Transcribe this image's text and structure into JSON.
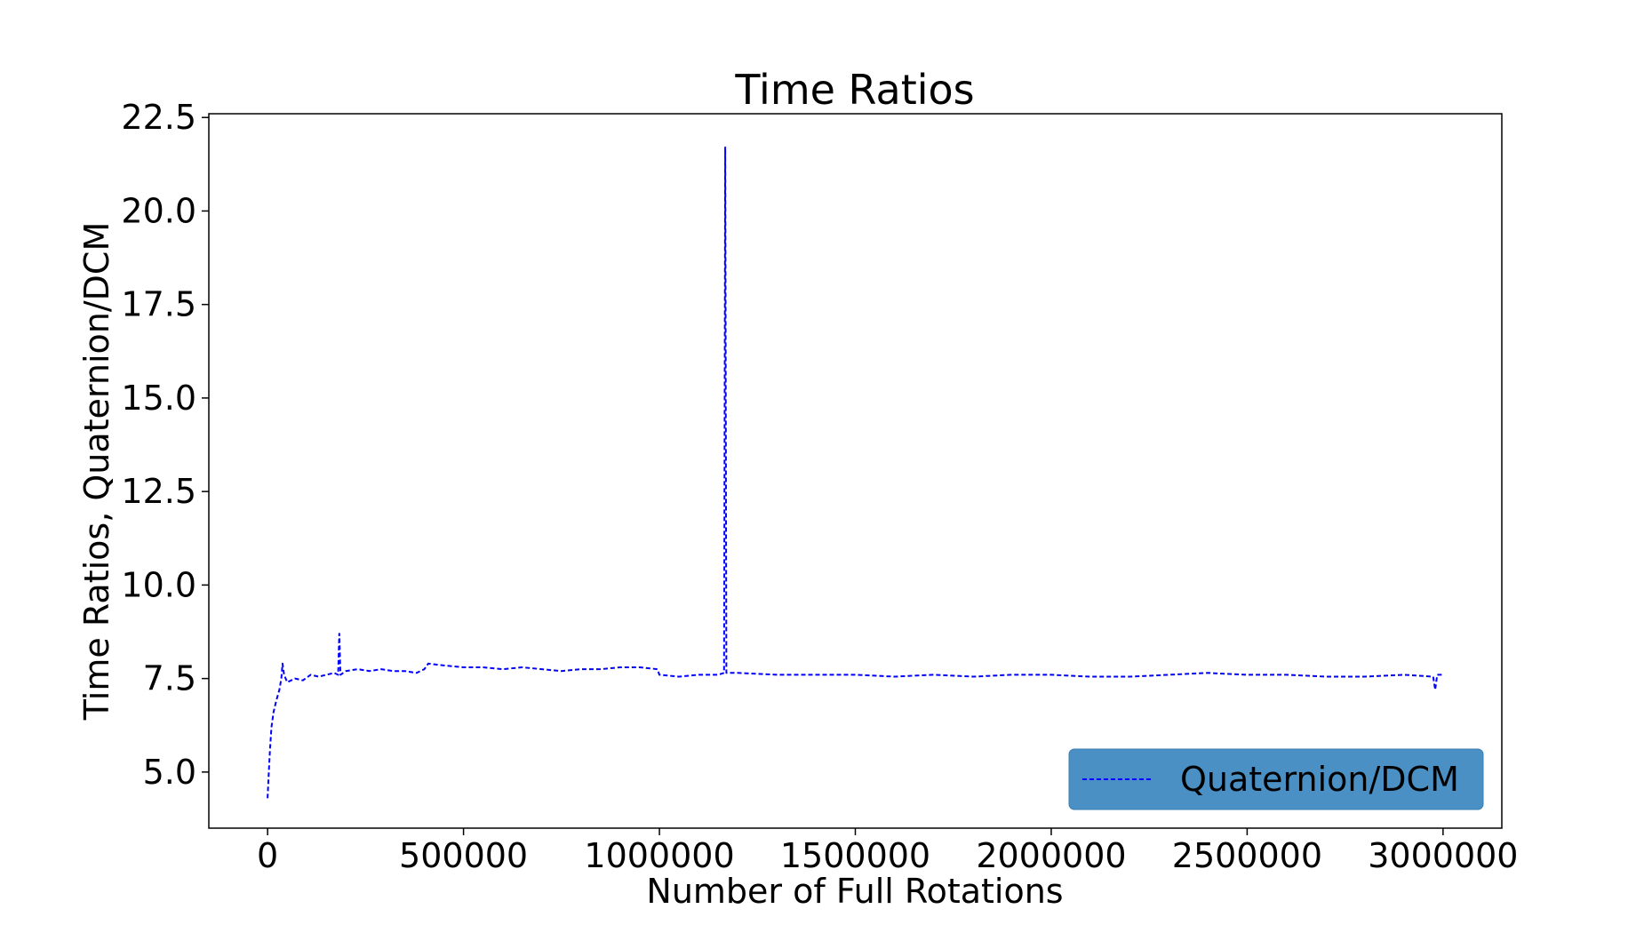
{
  "chart_data": {
    "type": "line",
    "title": "Time Ratios",
    "xlabel": "Number of Full Rotations",
    "ylabel": "Time Ratios, Quaternion/DCM",
    "xlim": [
      -150000,
      3150000
    ],
    "ylim": [
      3.5,
      22.6
    ],
    "xticks": [
      0,
      500000,
      1000000,
      1500000,
      2000000,
      2500000,
      3000000
    ],
    "xtick_labels": [
      "0",
      "500000",
      "1000000",
      "1500000",
      "2000000",
      "2500000",
      "3000000"
    ],
    "yticks": [
      5.0,
      7.5,
      10.0,
      12.5,
      15.0,
      17.5,
      20.0,
      22.5
    ],
    "ytick_labels": [
      "5.0",
      "7.5",
      "10.0",
      "12.5",
      "15.0",
      "17.5",
      "20.0",
      "22.5"
    ],
    "grid": false,
    "legend_position": "lower-right",
    "legend_color": "#4a90c4",
    "series": [
      {
        "name": "Quaternion/DCM",
        "color": "#0000ff",
        "linestyle": "dashed",
        "points": [
          [
            0,
            4.3
          ],
          [
            3000,
            5.0
          ],
          [
            6000,
            5.6
          ],
          [
            10000,
            6.2
          ],
          [
            15000,
            6.6
          ],
          [
            22000,
            6.9
          ],
          [
            30000,
            7.2
          ],
          [
            35000,
            7.5
          ],
          [
            38000,
            7.9
          ],
          [
            42000,
            7.6
          ],
          [
            50000,
            7.4
          ],
          [
            70000,
            7.5
          ],
          [
            90000,
            7.45
          ],
          [
            110000,
            7.6
          ],
          [
            130000,
            7.55
          ],
          [
            150000,
            7.6
          ],
          [
            170000,
            7.65
          ],
          [
            180000,
            7.6
          ],
          [
            183000,
            8.7
          ],
          [
            186000,
            7.6
          ],
          [
            200000,
            7.7
          ],
          [
            230000,
            7.75
          ],
          [
            260000,
            7.7
          ],
          [
            290000,
            7.75
          ],
          [
            320000,
            7.7
          ],
          [
            350000,
            7.7
          ],
          [
            380000,
            7.65
          ],
          [
            400000,
            7.75
          ],
          [
            410000,
            7.9
          ],
          [
            450000,
            7.85
          ],
          [
            500000,
            7.8
          ],
          [
            550000,
            7.8
          ],
          [
            600000,
            7.75
          ],
          [
            650000,
            7.8
          ],
          [
            700000,
            7.75
          ],
          [
            750000,
            7.7
          ],
          [
            800000,
            7.75
          ],
          [
            850000,
            7.75
          ],
          [
            900000,
            7.8
          ],
          [
            950000,
            7.8
          ],
          [
            995000,
            7.75
          ],
          [
            1000000,
            7.6
          ],
          [
            1050000,
            7.55
          ],
          [
            1100000,
            7.6
          ],
          [
            1150000,
            7.6
          ],
          [
            1165000,
            7.65
          ],
          [
            1168000,
            21.7
          ],
          [
            1171000,
            7.65
          ],
          [
            1200000,
            7.65
          ],
          [
            1300000,
            7.6
          ],
          [
            1400000,
            7.6
          ],
          [
            1500000,
            7.6
          ],
          [
            1600000,
            7.55
          ],
          [
            1700000,
            7.6
          ],
          [
            1800000,
            7.55
          ],
          [
            1900000,
            7.6
          ],
          [
            2000000,
            7.6
          ],
          [
            2100000,
            7.55
          ],
          [
            2200000,
            7.55
          ],
          [
            2300000,
            7.6
          ],
          [
            2400000,
            7.65
          ],
          [
            2500000,
            7.6
          ],
          [
            2550000,
            7.6
          ],
          [
            2600000,
            7.6
          ],
          [
            2700000,
            7.55
          ],
          [
            2800000,
            7.55
          ],
          [
            2900000,
            7.6
          ],
          [
            2975000,
            7.55
          ],
          [
            2980000,
            7.2
          ],
          [
            2985000,
            7.6
          ],
          [
            3000000,
            7.6
          ]
        ]
      }
    ]
  }
}
